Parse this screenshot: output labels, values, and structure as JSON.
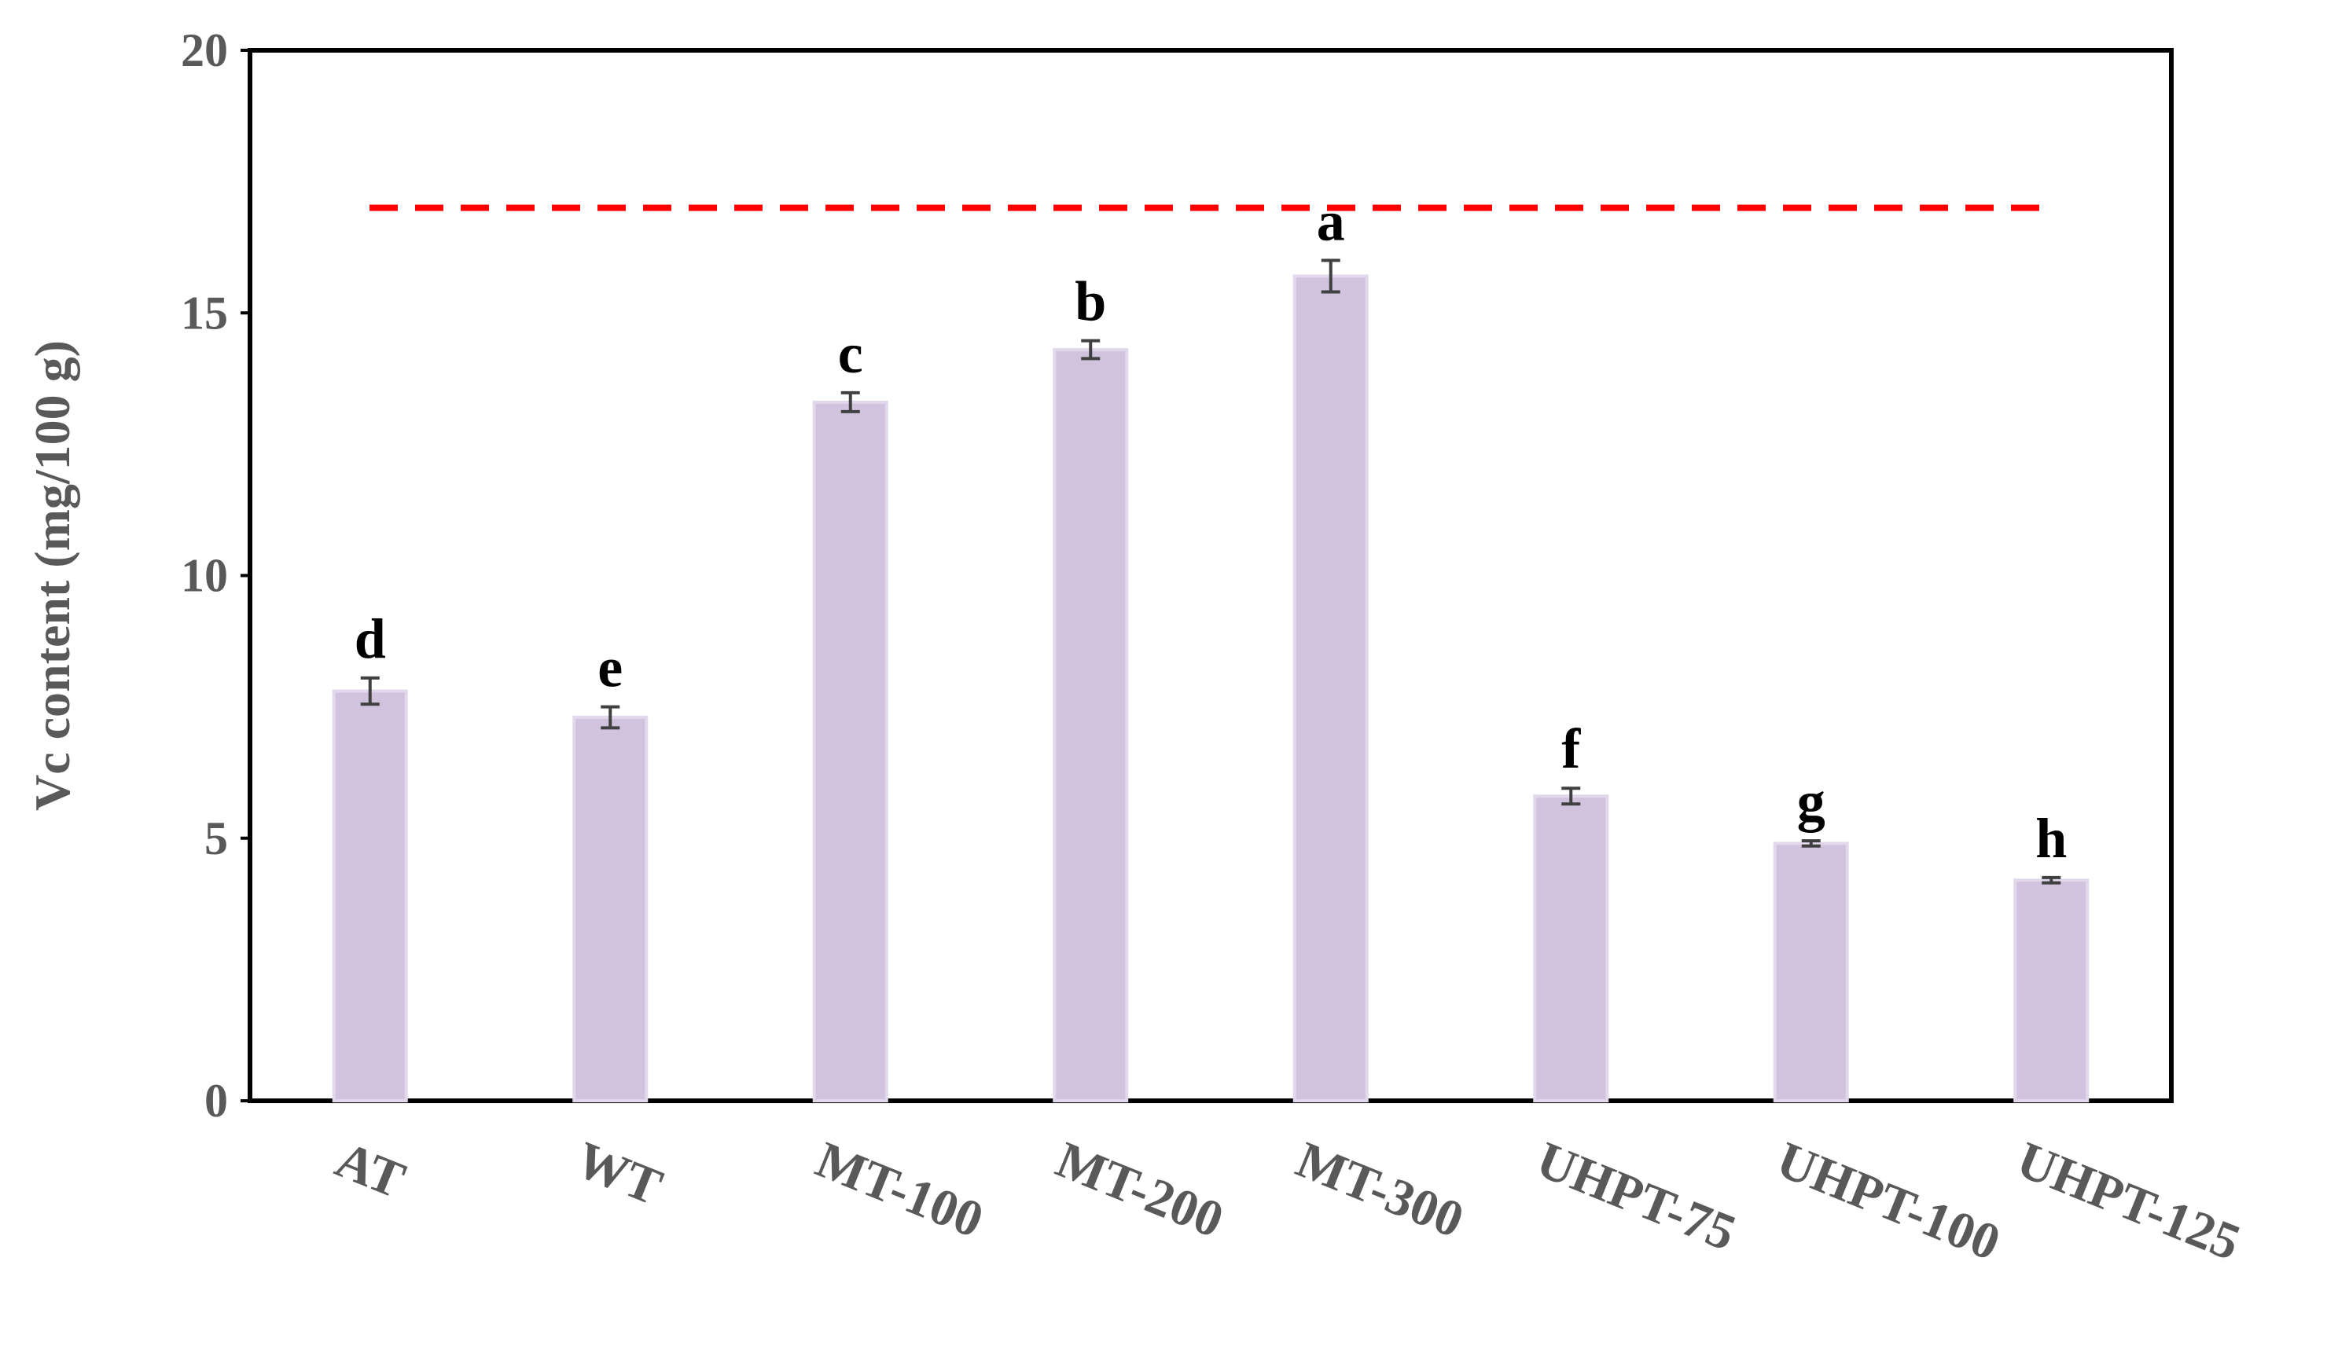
{
  "chart_data": {
    "type": "bar",
    "title": "",
    "xlabel": "",
    "ylabel": "Vc content (mg/100 g)",
    "ylim": [
      0,
      20
    ],
    "yticks": [
      0,
      5,
      10,
      15,
      20
    ],
    "categories": [
      "AT",
      "WT",
      "MT-100",
      "MT-200",
      "MT-300",
      "UHPT-75",
      "UHPT-100",
      "UHPT-125"
    ],
    "values": [
      7.8,
      7.3,
      13.3,
      14.3,
      15.7,
      5.8,
      4.9,
      4.2
    ],
    "errors": [
      0.25,
      0.2,
      0.18,
      0.17,
      0.3,
      0.15,
      0.05,
      0.05
    ],
    "significance": [
      "d",
      "e",
      "c",
      "b",
      "a",
      "f",
      "g",
      "h"
    ],
    "reference_line": {
      "value": 17.0,
      "style": "dashed",
      "color": "#ff0000"
    },
    "bar_color": "#d1c2de",
    "bar_edge_color": "#e2d8ec",
    "error_bar_color": "#404040",
    "grid": false,
    "legend": "none"
  }
}
